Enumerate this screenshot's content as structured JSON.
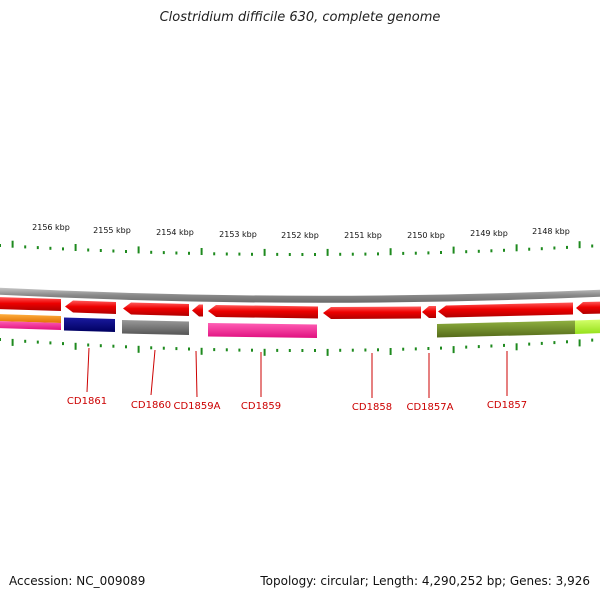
{
  "title": "Clostridium difficile 630, complete genome",
  "footer": {
    "accession": "Accession: NC_009089",
    "summary": "Topology: circular; Length: 4,290,252 bp; Genes: 3,926"
  },
  "ruler": {
    "labels": [
      "2156 kbp",
      "2155 kbp",
      "2154 kbp",
      "2153 kbp",
      "2152 kbp",
      "2151 kbp",
      "2150 kbp",
      "2149 kbp",
      "2148 kbp"
    ],
    "color": "#1e8a1e"
  },
  "genes": [
    {
      "name": "CD1861"
    },
    {
      "name": "CD1860"
    },
    {
      "name": "CD1859A"
    },
    {
      "name": "CD1859"
    },
    {
      "name": "CD1858"
    },
    {
      "name": "CD1857A"
    },
    {
      "name": "CD1857"
    }
  ],
  "colors": {
    "gene_red": "#ee0000",
    "backbone": "#8a8a8a",
    "label_red": "#cc0000",
    "navy": "#000080",
    "gray": "#707070",
    "pink": "#ff1493",
    "olive": "#6b8e23",
    "lime": "#adff2f",
    "orange": "#ff8c00"
  }
}
